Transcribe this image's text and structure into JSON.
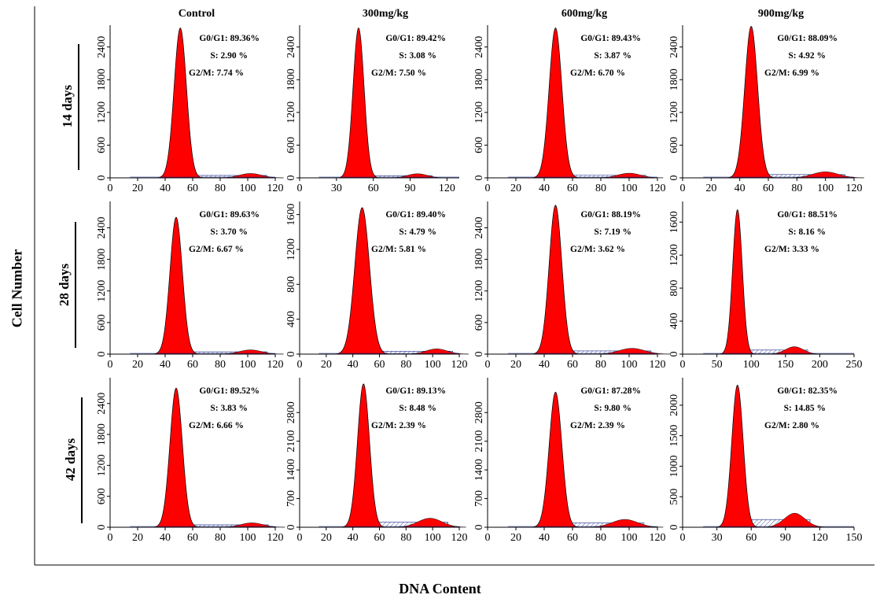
{
  "figure": {
    "y_axis_label": "Cell Number",
    "x_axis_label": "DNA Content",
    "column_headers": [
      "Control",
      "300mg/kg",
      "600mg/kg",
      "900mg/kg"
    ],
    "row_headers": [
      "14 days",
      "28 days",
      "42 days"
    ]
  },
  "colors": {
    "g1_fill": "#ff0000",
    "s_phase_hatch": "#1f2a8a",
    "axis": "#000000"
  },
  "chart_data": [
    {
      "type": "area",
      "row": "14 days",
      "column": "Control",
      "xlim": [
        0,
        120
      ],
      "xticks": [
        0,
        20,
        40,
        60,
        80,
        100,
        120
      ],
      "yticks": [
        0,
        600,
        1200,
        1800,
        2400
      ],
      "ylim": [
        0,
        2800
      ],
      "peak_x": 51,
      "peak_y": 2750,
      "g1_width": 4.5,
      "g2_x": 102,
      "g2_y": 80,
      "g2_width": 8,
      "stats": [
        "G0/G1: 89.36%",
        "S: 2.90 %",
        "G2/M: 7.74 %"
      ]
    },
    {
      "type": "area",
      "row": "14 days",
      "column": "300mg/kg",
      "xlim": [
        0,
        130
      ],
      "xticks": [
        0,
        30,
        60,
        90,
        120
      ],
      "yticks": [
        0,
        600,
        1200,
        1800,
        2400
      ],
      "ylim": [
        0,
        2800
      ],
      "peak_x": 48,
      "peak_y": 2750,
      "g1_width": 4.5,
      "g2_x": 96,
      "g2_y": 75,
      "g2_width": 8,
      "stats": [
        "G0/G1: 89.42%",
        "S: 3.08 %",
        "G2/M: 7.50 %"
      ]
    },
    {
      "type": "area",
      "row": "14 days",
      "column": "600mg/kg",
      "xlim": [
        0,
        120
      ],
      "xticks": [
        0,
        20,
        40,
        60,
        80,
        100,
        120
      ],
      "yticks": [
        0,
        600,
        1200,
        1800,
        2400
      ],
      "ylim": [
        0,
        2800
      ],
      "peak_x": 48,
      "peak_y": 2750,
      "g1_width": 4.5,
      "g2_x": 100,
      "g2_y": 85,
      "g2_width": 8,
      "stats": [
        "G0/G1: 89.43%",
        "S: 3.87 %",
        "G2/M: 6.70 %"
      ]
    },
    {
      "type": "area",
      "row": "14 days",
      "column": "900mg/kg",
      "xlim": [
        0,
        120
      ],
      "xticks": [
        0,
        20,
        40,
        60,
        80,
        100,
        120
      ],
      "yticks": [
        0,
        600,
        1200,
        1800,
        2400
      ],
      "ylim": [
        0,
        2800
      ],
      "peak_x": 48,
      "peak_y": 2780,
      "g1_width": 4.5,
      "g2_x": 100,
      "g2_y": 110,
      "g2_width": 9,
      "stats": [
        "G0/G1: 88.09%",
        "S: 4.92 %",
        "G2/M: 6.99 %"
      ]
    },
    {
      "type": "area",
      "row": "28 days",
      "column": "Control",
      "xlim": [
        0,
        120
      ],
      "xticks": [
        0,
        20,
        40,
        60,
        80,
        100,
        120
      ],
      "yticks": [
        0,
        600,
        1200,
        1800,
        2400
      ],
      "ylim": [
        0,
        2900
      ],
      "peak_x": 48,
      "peak_y": 2600,
      "g1_width": 4.5,
      "g2_x": 102,
      "g2_y": 80,
      "g2_width": 8,
      "stats": [
        "G0/G1: 89.63%",
        "S: 3.70 %",
        "G2/M: 6.67 %"
      ]
    },
    {
      "type": "area",
      "row": "28 days",
      "column": "300mg/kg",
      "xlim": [
        0,
        120
      ],
      "xticks": [
        0,
        20,
        40,
        60,
        80,
        100,
        120
      ],
      "yticks": [
        0,
        400,
        800,
        1200,
        1600
      ],
      "ylim": [
        0,
        1750
      ],
      "peak_x": 47,
      "peak_y": 1680,
      "g1_width": 5.5,
      "g2_x": 103,
      "g2_y": 60,
      "g2_width": 8,
      "stats": [
        "G0/G1: 89.40%",
        "S: 4.79 %",
        "G2/M: 5.81 %"
      ]
    },
    {
      "type": "area",
      "row": "28 days",
      "column": "600mg/kg",
      "xlim": [
        0,
        120
      ],
      "xticks": [
        0,
        20,
        40,
        60,
        80,
        100,
        120
      ],
      "yticks": [
        0,
        600,
        1200,
        1800,
        2400
      ],
      "ylim": [
        0,
        2900
      ],
      "peak_x": 48,
      "peak_y": 2830,
      "g1_width": 4.5,
      "g2_x": 102,
      "g2_y": 110,
      "g2_width": 9,
      "stats": [
        "G0/G1: 88.19%",
        "S: 7.19 %",
        "G2/M: 3.62 %"
      ]
    },
    {
      "type": "area",
      "row": "28 days",
      "column": "900mg/kg",
      "xlim": [
        0,
        250
      ],
      "xticks": [
        0,
        50,
        100,
        150,
        200,
        250
      ],
      "yticks": [
        0,
        400,
        800,
        1200,
        1600
      ],
      "ylim": [
        0,
        1850
      ],
      "peak_x": 80,
      "peak_y": 1750,
      "g1_width": 7,
      "g2_x": 163,
      "g2_y": 90,
      "g2_width": 13,
      "stats": [
        "G0/G1: 88.51%",
        "S: 8.16 %",
        "G2/M: 3.33 %"
      ]
    },
    {
      "type": "area",
      "row": "42 days",
      "column": "Control",
      "xlim": [
        0,
        120
      ],
      "xticks": [
        0,
        20,
        40,
        60,
        80,
        100,
        120
      ],
      "yticks": [
        0,
        600,
        1200,
        1800,
        2400
      ],
      "ylim": [
        0,
        2900
      ],
      "peak_x": 48,
      "peak_y": 2700,
      "g1_width": 4.5,
      "g2_x": 103,
      "g2_y": 85,
      "g2_width": 8,
      "stats": [
        "G0/G1: 89.52%",
        "S: 3.83 %",
        "G2/M: 6.66 %"
      ]
    },
    {
      "type": "area",
      "row": "42 days",
      "column": "300mg/kg",
      "xlim": [
        0,
        120
      ],
      "xticks": [
        0,
        20,
        40,
        60,
        80,
        100,
        120
      ],
      "yticks": [
        0,
        700,
        1400,
        2100,
        2800
      ],
      "ylim": [
        0,
        3650
      ],
      "peak_x": 48,
      "peak_y": 3500,
      "g1_width": 4.5,
      "g2_x": 98,
      "g2_y": 220,
      "g2_width": 9,
      "stats": [
        "G0/G1: 89.13%",
        "S: 8.48 %",
        "G2/M: 2.39 %"
      ]
    },
    {
      "type": "area",
      "row": "42 days",
      "column": "600mg/kg",
      "xlim": [
        0,
        120
      ],
      "xticks": [
        0,
        20,
        40,
        60,
        80,
        100,
        120
      ],
      "yticks": [
        0,
        700,
        1400,
        2100,
        2800
      ],
      "ylim": [
        0,
        3650
      ],
      "peak_x": 48,
      "peak_y": 3300,
      "g1_width": 4.5,
      "g2_x": 97,
      "g2_y": 190,
      "g2_width": 9,
      "stats": [
        "G0/G1: 87.28%",
        "S: 9.80 %",
        "G2/M: 2.39 %"
      ]
    },
    {
      "type": "area",
      "row": "42 days",
      "column": "900mg/kg",
      "xlim": [
        0,
        150
      ],
      "xticks": [
        0,
        30,
        60,
        90,
        120,
        150
      ],
      "yticks": [
        0,
        500,
        1000,
        1500,
        2000
      ],
      "ylim": [
        0,
        2450
      ],
      "peak_x": 48,
      "peak_y": 2330,
      "g1_width": 5,
      "g2_x": 98,
      "g2_y": 230,
      "g2_width": 9,
      "stats": [
        "G0/G1: 82.35%",
        "S: 14.85 %",
        "G2/M: 2.80 %"
      ]
    }
  ]
}
